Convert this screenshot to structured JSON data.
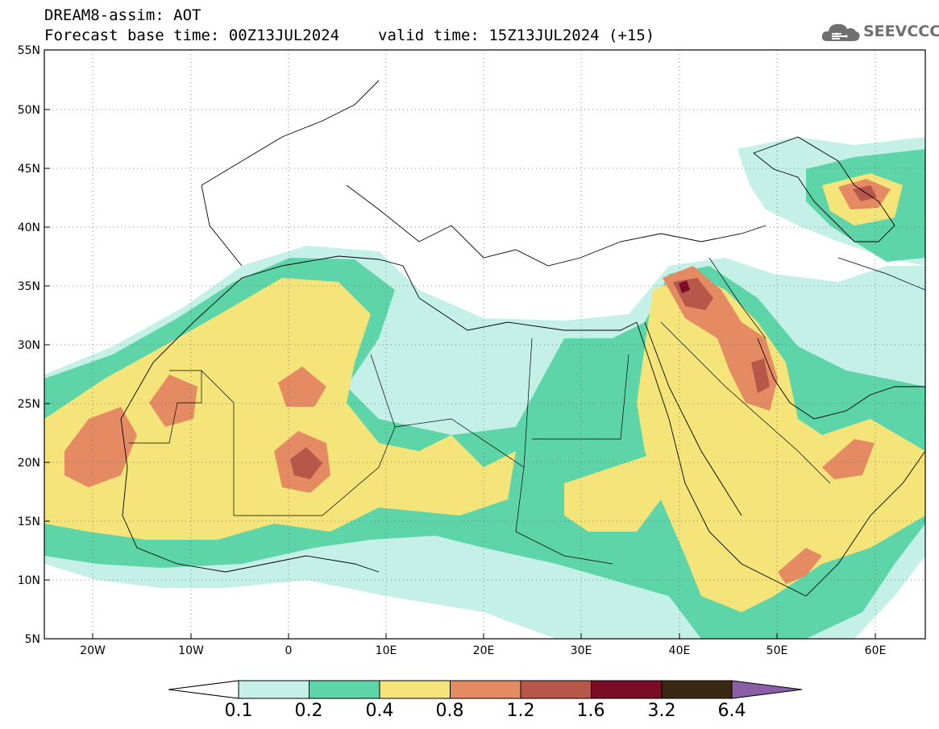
{
  "header": {
    "title": "DREAM8-assim: AOT",
    "base_time": "Forecast base time: 00Z13JUL2024",
    "valid_time": "valid time: 15Z13JUL2024 (+15)"
  },
  "logo": {
    "text": "SEEVCCC",
    "icon": "cloud-icon"
  },
  "map": {
    "lat_labels": [
      "55N",
      "50N",
      "45N",
      "40N",
      "35N",
      "30N",
      "25N",
      "20N",
      "15N",
      "10N",
      "5N"
    ],
    "lon_labels": [
      "20W",
      "10W",
      "0",
      "10E",
      "20E",
      "30E",
      "40E",
      "50E",
      "60E"
    ]
  },
  "colorbar": {
    "levels": [
      "0.1",
      "0.2",
      "0.4",
      "0.8",
      "1.2",
      "1.6",
      "3.2",
      "6.4"
    ],
    "colors": [
      "#c4f0e8",
      "#5dd5a9",
      "#f5e479",
      "#e58b63",
      "#b6574a",
      "#7a0c26",
      "#3a2813"
    ],
    "under_color": "#ffffff",
    "over_color": "#8a5fa8"
  },
  "palette": {
    "very_low": "#c4f0e8",
    "low": "#5dd5a9",
    "moderate": "#f5e479",
    "high": "#e58b63",
    "very_high": "#b6574a",
    "extreme": "#7a0c26",
    "border": "#000000"
  }
}
